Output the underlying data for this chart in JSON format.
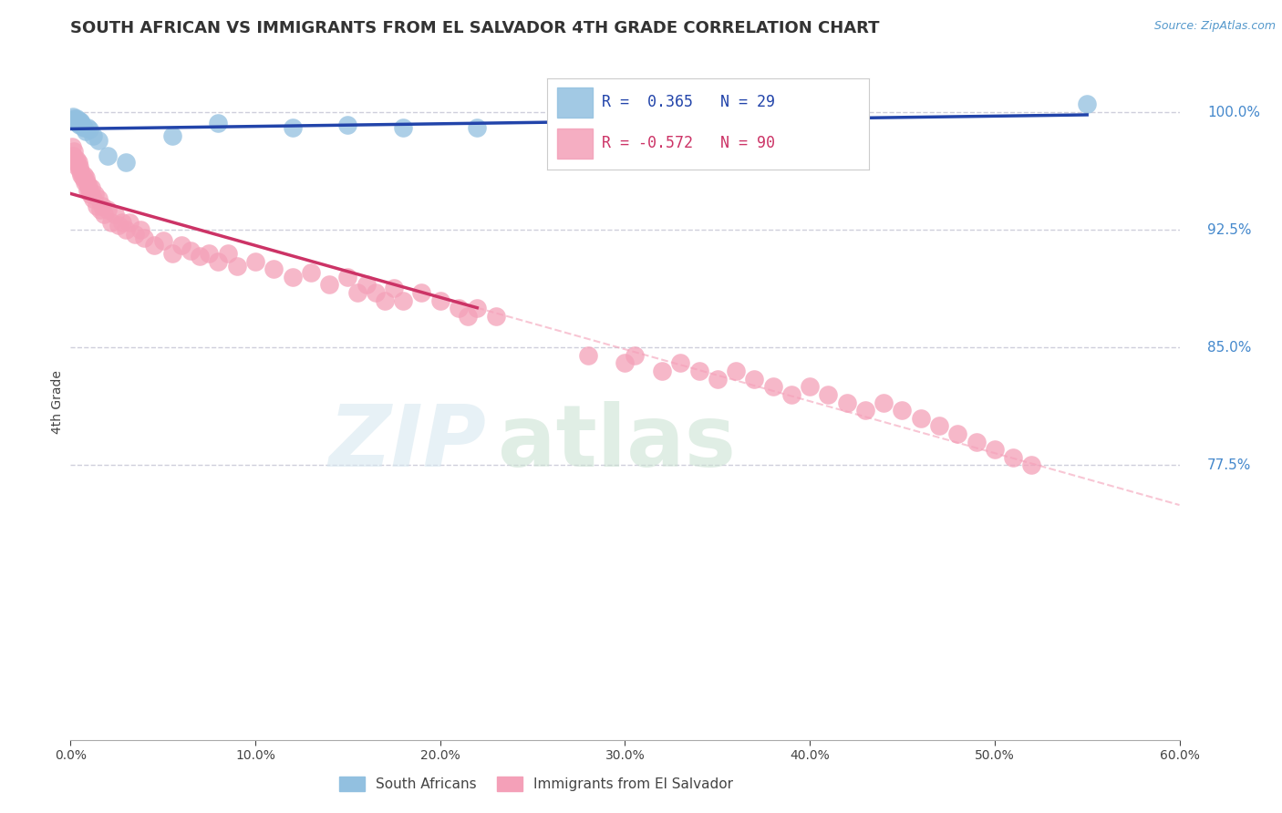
{
  "title": "SOUTH AFRICAN VS IMMIGRANTS FROM EL SALVADOR 4TH GRADE CORRELATION CHART",
  "source": "Source: ZipAtlas.com",
  "ylabel": "4th Grade",
  "xlim": [
    0.0,
    60.0
  ],
  "ylim": [
    60.0,
    103.0
  ],
  "yticks": [
    77.5,
    85.0,
    92.5,
    100.0
  ],
  "xticks": [
    0.0,
    10.0,
    20.0,
    30.0,
    40.0,
    50.0,
    60.0
  ],
  "xtick_labels": [
    "0.0%",
    "10.0%",
    "20.0%",
    "30.0%",
    "40.0%",
    "50.0%",
    "60.0%"
  ],
  "ytick_labels": [
    "77.5%",
    "85.0%",
    "92.5%",
    "100.0%"
  ],
  "blue_color": "#92C0E0",
  "pink_color": "#F4A0B8",
  "blue_line_color": "#2244AA",
  "pink_line_color": "#CC3366",
  "pink_dash_color": "#F4A0B8",
  "legend_r_blue": "R =  0.365",
  "legend_n_blue": "N = 29",
  "legend_r_pink": "R = -0.572",
  "legend_n_pink": "N = 90",
  "blue_scatter_x": [
    0.1,
    0.15,
    0.2,
    0.25,
    0.3,
    0.35,
    0.4,
    0.45,
    0.5,
    0.55,
    0.6,
    0.65,
    0.7,
    0.8,
    0.9,
    1.0,
    1.2,
    1.5,
    2.0,
    3.0,
    5.5,
    8.0,
    12.0,
    15.0,
    18.0,
    22.0,
    28.0,
    35.0,
    55.0
  ],
  "blue_scatter_y": [
    99.5,
    99.7,
    99.6,
    99.5,
    99.4,
    99.6,
    99.3,
    99.5,
    99.2,
    99.4,
    99.3,
    99.1,
    99.0,
    98.8,
    99.0,
    98.9,
    98.5,
    98.2,
    97.2,
    96.8,
    98.5,
    99.3,
    99.0,
    99.2,
    99.0,
    99.0,
    99.5,
    99.0,
    100.5
  ],
  "pink_scatter_x": [
    0.1,
    0.15,
    0.2,
    0.25,
    0.3,
    0.35,
    0.4,
    0.45,
    0.5,
    0.55,
    0.6,
    0.65,
    0.7,
    0.75,
    0.8,
    0.85,
    0.9,
    0.95,
    1.0,
    1.05,
    1.1,
    1.2,
    1.3,
    1.4,
    1.5,
    1.6,
    1.7,
    1.8,
    2.0,
    2.2,
    2.4,
    2.6,
    2.8,
    3.0,
    3.2,
    3.5,
    3.8,
    4.0,
    4.5,
    5.0,
    5.5,
    6.0,
    6.5,
    7.0,
    7.5,
    8.0,
    8.5,
    9.0,
    10.0,
    11.0,
    12.0,
    13.0,
    14.0,
    15.0,
    15.5,
    16.0,
    16.5,
    17.0,
    17.5,
    18.0,
    19.0,
    20.0,
    21.0,
    21.5,
    22.0,
    23.0,
    28.0,
    30.0,
    30.5,
    32.0,
    33.0,
    34.0,
    35.0,
    36.0,
    37.0,
    38.0,
    39.0,
    40.0,
    41.0,
    42.0,
    43.0,
    44.0,
    45.0,
    46.0,
    47.0,
    48.0,
    49.0,
    50.0,
    51.0,
    52.0
  ],
  "pink_scatter_y": [
    97.8,
    97.2,
    97.5,
    97.0,
    96.8,
    97.0,
    96.5,
    96.8,
    96.5,
    96.2,
    96.0,
    95.8,
    96.0,
    95.5,
    95.8,
    95.5,
    95.0,
    95.3,
    95.0,
    94.8,
    95.2,
    94.5,
    94.8,
    94.0,
    94.5,
    93.8,
    94.0,
    93.5,
    93.8,
    93.0,
    93.5,
    92.8,
    93.0,
    92.5,
    93.0,
    92.2,
    92.5,
    92.0,
    91.5,
    91.8,
    91.0,
    91.5,
    91.2,
    90.8,
    91.0,
    90.5,
    91.0,
    90.2,
    90.5,
    90.0,
    89.5,
    89.8,
    89.0,
    89.5,
    88.5,
    89.0,
    88.5,
    88.0,
    88.8,
    88.0,
    88.5,
    88.0,
    87.5,
    87.0,
    87.5,
    87.0,
    84.5,
    84.0,
    84.5,
    83.5,
    84.0,
    83.5,
    83.0,
    83.5,
    83.0,
    82.5,
    82.0,
    82.5,
    82.0,
    81.5,
    81.0,
    81.5,
    81.0,
    80.5,
    80.0,
    79.5,
    79.0,
    78.5,
    78.0,
    77.5
  ]
}
